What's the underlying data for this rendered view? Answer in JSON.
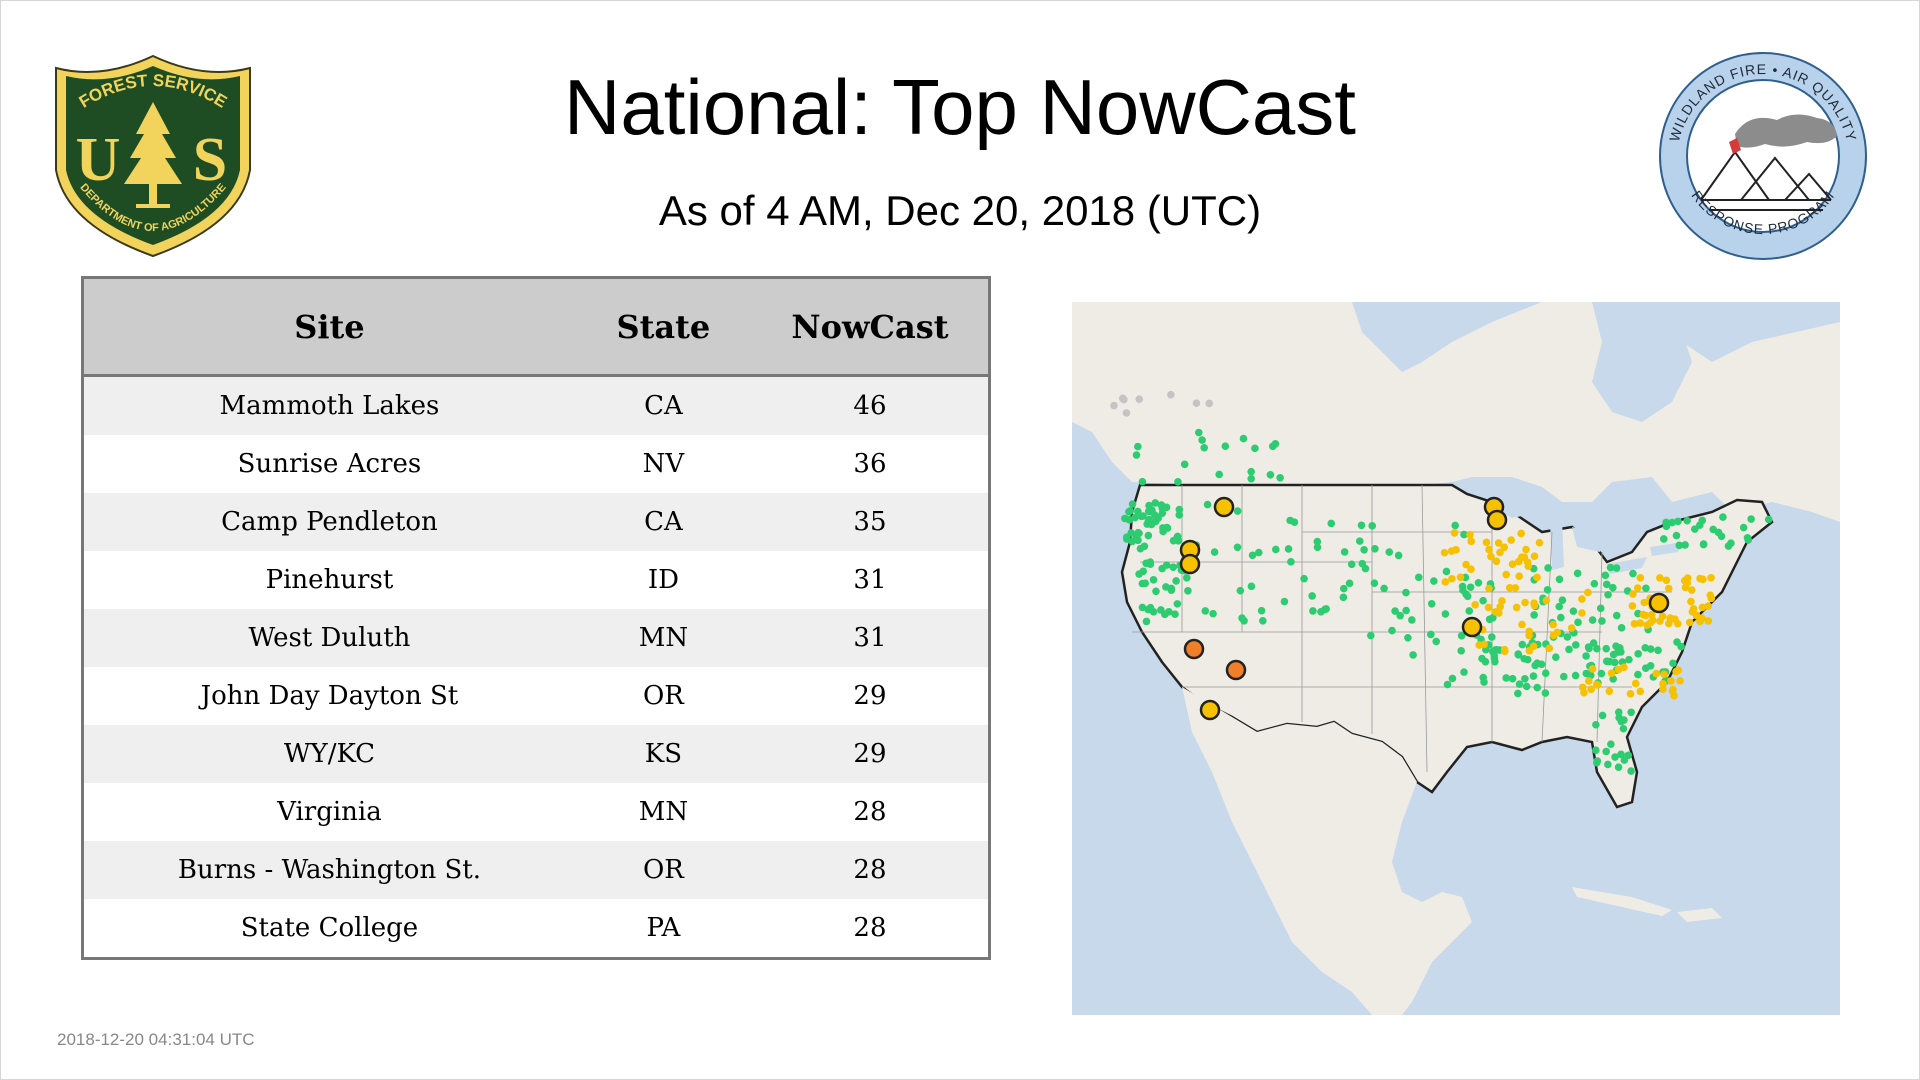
{
  "header": {
    "title": "National: Top NowCast",
    "subtitle": "As of  4 AM, Dec 20, 2018 (UTC)"
  },
  "logos": {
    "usfs": {
      "top_text": "FOREST SERVICE",
      "bottom_text": "DEPARTMENT OF AGRICULTURE",
      "letters": "U S",
      "colors": {
        "shield": "#1e4d24",
        "gold": "#f2d35b"
      }
    },
    "wfaq": {
      "top_text": "WILDLAND FIRE • AIR QUALITY",
      "bottom_text": "RESPONSE PROGRAM",
      "colors": {
        "ring": "#b9d2ec",
        "smoke": "#8c8c8c",
        "flag": "#d63a3a"
      }
    }
  },
  "table": {
    "columns": [
      "Site",
      "State",
      "NowCast"
    ],
    "rows": [
      {
        "site": "Mammoth Lakes",
        "state": "CA",
        "nowcast": "46"
      },
      {
        "site": "Sunrise Acres",
        "state": "NV",
        "nowcast": "36"
      },
      {
        "site": "Camp Pendleton",
        "state": "CA",
        "nowcast": "35"
      },
      {
        "site": "Pinehurst",
        "state": "ID",
        "nowcast": "31"
      },
      {
        "site": "West Duluth",
        "state": "MN",
        "nowcast": "31"
      },
      {
        "site": "John Day Dayton St",
        "state": "OR",
        "nowcast": "29"
      },
      {
        "site": "WY/KC",
        "state": "KS",
        "nowcast": "29"
      },
      {
        "site": "Virginia",
        "state": "MN",
        "nowcast": "28"
      },
      {
        "site": "Burns - Washington St.",
        "state": "OR",
        "nowcast": "28"
      },
      {
        "site": "State College",
        "state": "PA",
        "nowcast": "28"
      }
    ]
  },
  "map": {
    "colors": {
      "water": "#c7d9ea",
      "land": "#efece6",
      "border": "#222222",
      "good": "#2ecc71",
      "moderate": "#f5c100",
      "usg": "#f07f2a",
      "nodata": "#c4c4c4"
    }
  },
  "footer": {
    "timestamp": "2018-12-20 04:31:04 UTC"
  }
}
